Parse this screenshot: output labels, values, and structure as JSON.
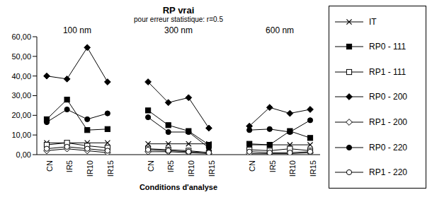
{
  "chart_data": {
    "type": "line",
    "title": "RP vrai",
    "subtitle": "pour erreur statistique: r=0.5",
    "x_label": "Conditions d'analyse",
    "annotations": [
      "100 nm",
      "300 nm",
      "600 nm"
    ],
    "categories": [
      "CN",
      "IR5",
      "IR10",
      "IR15",
      null,
      "CN",
      "IR5",
      "IR10",
      "IR15",
      null,
      "CN",
      "IR5",
      "IR10",
      "IR15"
    ],
    "ylim": [
      0,
      60
    ],
    "yticks": [
      {
        "value": 0,
        "label": "0,00"
      },
      {
        "value": 10,
        "label": "10,00"
      },
      {
        "value": 20,
        "label": "20,00"
      },
      {
        "value": 30,
        "label": "30,00"
      },
      {
        "value": 40,
        "label": "40,00"
      },
      {
        "value": 50,
        "label": "50,00"
      },
      {
        "value": 60,
        "label": "60,00"
      }
    ],
    "grid": false,
    "legend": "right",
    "series": [
      {
        "name": "IT",
        "color": "#000000",
        "marker": "x",
        "values": [
          6,
          6,
          6,
          6,
          null,
          5.5,
          5.5,
          5.5,
          5.5,
          null,
          5,
          5,
          5,
          5
        ]
      },
      {
        "name": "RP0 - 111",
        "color": "#000000",
        "marker": "square",
        "values": [
          18,
          28,
          12.5,
          13,
          null,
          22.5,
          15,
          12,
          5,
          null,
          5.5,
          5,
          12,
          8.5
        ]
      },
      {
        "name": "RP1 - 111",
        "color": "#000000",
        "marker": "square_open",
        "values": [
          5,
          6,
          4.5,
          3.5,
          null,
          3,
          2.5,
          2,
          1,
          null,
          2.5,
          2,
          3,
          2
        ]
      },
      {
        "name": "RP0 - 200",
        "color": "#000000",
        "marker": "diamond",
        "values": [
          40,
          38.5,
          54.5,
          37,
          null,
          37,
          26.5,
          29,
          13.5,
          null,
          14.5,
          24,
          21,
          23
        ]
      },
      {
        "name": "RP1 - 200",
        "color": "#000000",
        "marker": "diamond_open",
        "values": [
          2,
          3,
          2,
          1,
          null,
          1.5,
          1.5,
          1,
          0.5,
          null,
          0.5,
          0.5,
          0.5,
          1
        ]
      },
      {
        "name": "RP0 - 220",
        "color": "#000000",
        "marker": "circle",
        "values": [
          16.5,
          23,
          18,
          21,
          null,
          19,
          11.5,
          11.5,
          3.5,
          null,
          12.5,
          13,
          11.5,
          17.5
        ]
      },
      {
        "name": "RP1 - 220",
        "color": "#000000",
        "marker": "circle_open",
        "values": [
          3,
          4,
          3,
          2,
          null,
          2.5,
          2,
          1.5,
          1,
          null,
          1.5,
          1,
          1,
          1.5
        ]
      }
    ]
  }
}
